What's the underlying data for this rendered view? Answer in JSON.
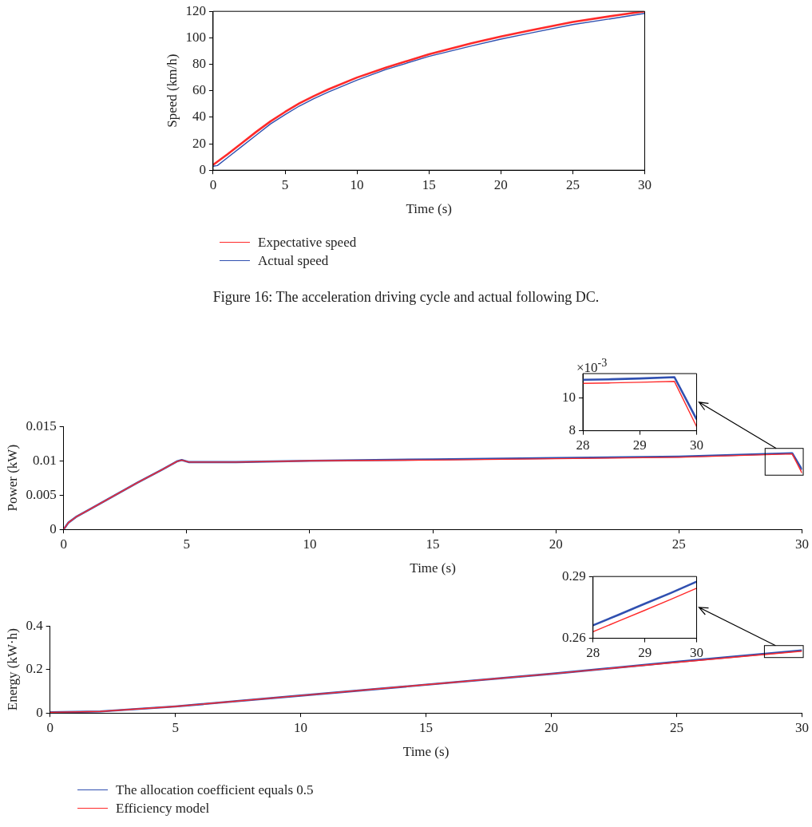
{
  "chart_data": [
    {
      "type": "line",
      "xlabel": "Time (s)",
      "ylabel": "Speed (km/h)",
      "xlim": [
        0,
        30
      ],
      "xticks": [
        0,
        5,
        10,
        15,
        20,
        25,
        30
      ],
      "ylim": [
        0,
        120
      ],
      "yticks": [
        0,
        20,
        40,
        60,
        80,
        100,
        120
      ],
      "grid": false,
      "legend": "bottom",
      "marker": "none",
      "line_style": "solid",
      "annotations": [
        "Figure 16: The acceleration driving cycle and actual following DC."
      ],
      "series": [
        {
          "name": "Expectative speed",
          "color": "#ff2a2a",
          "x": [
            0,
            1,
            2,
            3,
            4,
            5,
            6,
            7,
            8,
            10,
            12,
            15,
            18,
            20,
            22,
            25,
            28,
            30
          ],
          "values": [
            4,
            12,
            20.5,
            29,
            37,
            44,
            50.5,
            56,
            61,
            70,
            77.5,
            87.5,
            96,
            101,
            105.5,
            112,
            117,
            120
          ]
        },
        {
          "name": "Actual speed",
          "color": "#3050b0",
          "x": [
            0,
            0.3,
            1,
            2,
            3,
            4,
            5,
            6,
            7,
            8,
            10,
            12,
            15,
            18,
            20,
            22,
            25,
            28,
            30
          ],
          "values": [
            3,
            3.5,
            9.5,
            18,
            26.5,
            35,
            42,
            48.5,
            54,
            59,
            68,
            76,
            86,
            94,
            99,
            103.5,
            110,
            115,
            118.5
          ]
        }
      ]
    },
    {
      "type": "line",
      "xlim": [
        28,
        30
      ],
      "xticks": [
        28,
        29,
        30
      ],
      "ylim": [
        8,
        11.5
      ],
      "yticks": [
        8,
        10
      ],
      "grid": false,
      "marker": "none",
      "line_style": "solid",
      "annotations": [
        "×10$^{-3}$"
      ],
      "series": [
        {
          "color": "#3050b0",
          "x": [
            28,
            28.5,
            29,
            29.61,
            30
          ],
          "values": [
            11.12,
            11.15,
            11.2,
            11.28,
            8.7
          ]
        },
        {
          "color": "#ff2a2a",
          "x": [
            28,
            28.5,
            29,
            29.61,
            30
          ],
          "values": [
            10.9,
            10.93,
            10.97,
            11.02,
            8.25
          ]
        }
      ]
    },
    {
      "type": "line",
      "xlabel": "Time (s)",
      "ylabel": "Power (kW)",
      "xlim": [
        0,
        30
      ],
      "xticks": [
        0,
        5,
        10,
        15,
        20,
        25,
        30
      ],
      "ylim": [
        0,
        0.015
      ],
      "yticks": [
        0,
        0.005,
        0.01,
        0.015
      ],
      "grid": false,
      "marker": "none",
      "line_style": "solid",
      "series": [
        {
          "color": "#3050b0",
          "x": [
            0,
            0.2,
            0.5,
            1,
            2,
            3,
            4,
            4.6,
            4.8,
            5.1,
            7,
            10,
            15,
            20,
            25,
            29.6,
            30
          ],
          "values": [
            0,
            0.001,
            0.0018,
            0.0028,
            0.0048,
            0.0068,
            0.0087,
            0.0099,
            0.0101,
            0.0098,
            0.0098,
            0.01,
            0.0102,
            0.0104,
            0.0106,
            0.0111,
            0.0087
          ]
        },
        {
          "color": "#ff2a2a",
          "x": [
            0,
            0.2,
            0.5,
            1,
            2,
            3,
            4,
            4.6,
            4.8,
            5.1,
            7,
            10,
            15,
            20,
            25,
            29.6,
            30
          ],
          "values": [
            0,
            0.001,
            0.0018,
            0.0028,
            0.0048,
            0.0068,
            0.0087,
            0.0099,
            0.0101,
            0.0098,
            0.0098,
            0.01,
            0.0101,
            0.0103,
            0.0105,
            0.011,
            0.0082
          ]
        }
      ]
    },
    {
      "type": "line",
      "xlim": [
        28,
        30
      ],
      "xticks": [
        28,
        29,
        30
      ],
      "ylim": [
        0.26,
        0.29
      ],
      "yticks": [
        0.26,
        0.29
      ],
      "grid": false,
      "marker": "none",
      "line_style": "solid",
      "series": [
        {
          "color": "#3050b0",
          "x": [
            28,
            28.5,
            29,
            29.5,
            30
          ],
          "values": [
            0.2663,
            0.2715,
            0.2768,
            0.282,
            0.2875
          ]
        },
        {
          "color": "#ff2a2a",
          "x": [
            28,
            28.5,
            29,
            29.5,
            30
          ],
          "values": [
            0.2632,
            0.2684,
            0.2736,
            0.2789,
            0.2843
          ]
        }
      ]
    },
    {
      "type": "line",
      "xlabel": "Time (s)",
      "ylabel": "Energy (kW·h)",
      "xlim": [
        0,
        30
      ],
      "xticks": [
        0,
        5,
        10,
        15,
        20,
        25,
        30
      ],
      "ylim": [
        0,
        0.4
      ],
      "yticks": [
        0,
        0.2,
        0.4
      ],
      "grid": false,
      "legend": "bottom",
      "marker": "none",
      "line_style": "solid",
      "series": [
        {
          "name": "The allocation coefficient equals 0.5",
          "color": "#3050b0",
          "x": [
            0,
            2,
            5,
            10,
            15,
            20,
            25,
            30
          ],
          "values": [
            0.003,
            0.007,
            0.03,
            0.08,
            0.13,
            0.18,
            0.235,
            0.288
          ]
        },
        {
          "name": "Efficiency model",
          "color": "#ff2a2a",
          "x": [
            0,
            2,
            5,
            10,
            15,
            20,
            25,
            30
          ],
          "values": [
            0.003,
            0.007,
            0.03,
            0.08,
            0.13,
            0.18,
            0.233,
            0.284
          ]
        }
      ]
    }
  ]
}
